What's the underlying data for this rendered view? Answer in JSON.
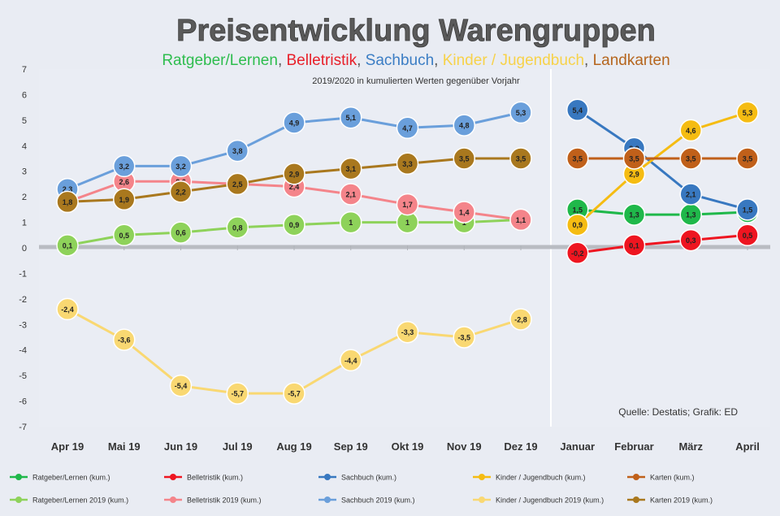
{
  "chart_data": {
    "type": "line",
    "title": "Preisentwicklung Warengruppen",
    "legend_title_parts": [
      {
        "text": "Ratgeber/Lernen",
        "color": "#2ebd4e"
      },
      {
        "text": ", ",
        "color": "#555555"
      },
      {
        "text": "Belletristik",
        "color": "#e8202a"
      },
      {
        "text": ", ",
        "color": "#555555"
      },
      {
        "text": "Sachbuch",
        "color": "#3b7dc4"
      },
      {
        "text": ", ",
        "color": "#555555"
      },
      {
        "text": "Kinder / Jugendbuch",
        "color": "#f7d24a"
      },
      {
        "text": ", ",
        "color": "#555555"
      },
      {
        "text": "Landkarten",
        "color": "#b5651d"
      }
    ],
    "subtitle": "2019/2020 in kumulierten Werten gegenüber Vorjahr",
    "source": "Quelle: Destatis; Grafik: ED",
    "categories": [
      "Apr 19",
      "Mai 19",
      "Jun 19",
      "Jul 19",
      "Aug 19",
      "Sep 19",
      "Okt 19",
      "Nov 19",
      "Dez 19",
      "Januar",
      "Februar",
      "März",
      "April"
    ],
    "ylim": [
      -7,
      7
    ],
    "yticks": [
      -7,
      -6,
      -5,
      -4,
      -3,
      -2,
      -1,
      0,
      1,
      2,
      3,
      4,
      5,
      6,
      7
    ],
    "series": [
      {
        "name": "Ratgeber/Lernen (kum.)",
        "color": "#1fb84a",
        "values": [
          null,
          null,
          null,
          null,
          null,
          null,
          null,
          null,
          null,
          1.5,
          1.3,
          1.3,
          1.4
        ],
        "labels": [
          "",
          "",
          "",
          "",
          "",
          "",
          "",
          "",
          "",
          "1,5",
          "1,3",
          "1,3",
          "1,4"
        ]
      },
      {
        "name": "Belletristik (kum.)",
        "color": "#ee1520",
        "values": [
          null,
          null,
          null,
          null,
          null,
          null,
          null,
          null,
          null,
          -0.2,
          0.1,
          0.3,
          0.5
        ],
        "labels": [
          "",
          "",
          "",
          "",
          "",
          "",
          "",
          "",
          "",
          "-0,2",
          "0,1",
          "0,3",
          "0,5"
        ]
      },
      {
        "name": "Sachbuch (kum.)",
        "color": "#3878c0",
        "values": [
          null,
          null,
          null,
          null,
          null,
          null,
          null,
          null,
          null,
          5.4,
          3.9,
          2.1,
          1.5
        ],
        "labels": [
          "",
          "",
          "",
          "",
          "",
          "",
          "",
          "",
          "",
          "5,4",
          "3,9",
          "2,1",
          "1,5"
        ]
      },
      {
        "name": "Kinder / Jugendbuch (kum.)",
        "color": "#f5bc12",
        "values": [
          null,
          null,
          null,
          null,
          null,
          null,
          null,
          null,
          null,
          0.9,
          2.9,
          4.6,
          5.3
        ],
        "labels": [
          "",
          "",
          "",
          "",
          "",
          "",
          "",
          "",
          "",
          "0,9",
          "2,9",
          "4,6",
          "5,3"
        ]
      },
      {
        "name": "Karten (kum.)",
        "color": "#c0601a",
        "values": [
          null,
          null,
          null,
          null,
          null,
          null,
          null,
          null,
          null,
          3.5,
          3.5,
          3.5,
          3.5
        ],
        "labels": [
          "",
          "",
          "",
          "",
          "",
          "",
          "",
          "",
          "",
          "3,5",
          "3,5",
          "3,5",
          "3,5"
        ]
      },
      {
        "name": "Ratgeber/Lernen 2019 (kum.)",
        "color": "#8ed25a",
        "values": [
          0.1,
          0.5,
          0.6,
          0.8,
          0.9,
          1.0,
          1.0,
          1.0,
          1.1,
          null,
          null,
          null,
          null
        ],
        "labels": [
          "0,1",
          "0,5",
          "0,6",
          "0,8",
          "0,9",
          "1",
          "1",
          "1",
          "1,1",
          "",
          "",
          "",
          ""
        ]
      },
      {
        "name": "Belletristik 2019 (kum.)",
        "color": "#f4848a",
        "values": [
          1.8,
          2.6,
          2.6,
          2.5,
          2.4,
          2.1,
          1.7,
          1.4,
          1.1,
          null,
          null,
          null,
          null
        ],
        "labels": [
          "1,8",
          "2,6",
          "2,6",
          "2,5",
          "2,4",
          "2,1",
          "1,7",
          "1,4",
          "1,1",
          "",
          "",
          "",
          ""
        ]
      },
      {
        "name": "Sachbuch 2019 (kum.)",
        "color": "#6a9fdb",
        "values": [
          2.3,
          3.2,
          3.2,
          3.8,
          4.9,
          5.1,
          4.7,
          4.8,
          5.3,
          null,
          null,
          null,
          null
        ],
        "labels": [
          "2,3",
          "3,2",
          "3,2",
          "3,8",
          "4,9",
          "5,1",
          "4,7",
          "4,8",
          "5,3",
          "",
          "",
          "",
          ""
        ]
      },
      {
        "name": "Kinder / Jugendbuch 2019 (kum.)",
        "color": "#f9d872",
        "values": [
          -2.4,
          -3.6,
          -5.4,
          -5.7,
          -5.7,
          -4.4,
          -3.3,
          -3.5,
          -2.8,
          null,
          null,
          null,
          null
        ],
        "labels": [
          "-2,4",
          "-3,6",
          "-5,4",
          "-5,7",
          "-5,7",
          "-4,4",
          "-3,3",
          "-3,5",
          "-2,8",
          "",
          "",
          "",
          ""
        ]
      },
      {
        "name": "Karten 2019 (kum.)",
        "color": "#a9781e",
        "values": [
          1.8,
          1.9,
          2.2,
          2.5,
          2.9,
          3.1,
          3.3,
          3.5,
          3.5,
          null,
          null,
          null,
          null
        ],
        "labels": [
          "1,8",
          "1,9",
          "2,2",
          "2,5",
          "2,9",
          "3,1",
          "3,3",
          "3,5",
          "3,5",
          "",
          "",
          "",
          ""
        ]
      }
    ],
    "grid": false,
    "legend_position": "bottom"
  }
}
